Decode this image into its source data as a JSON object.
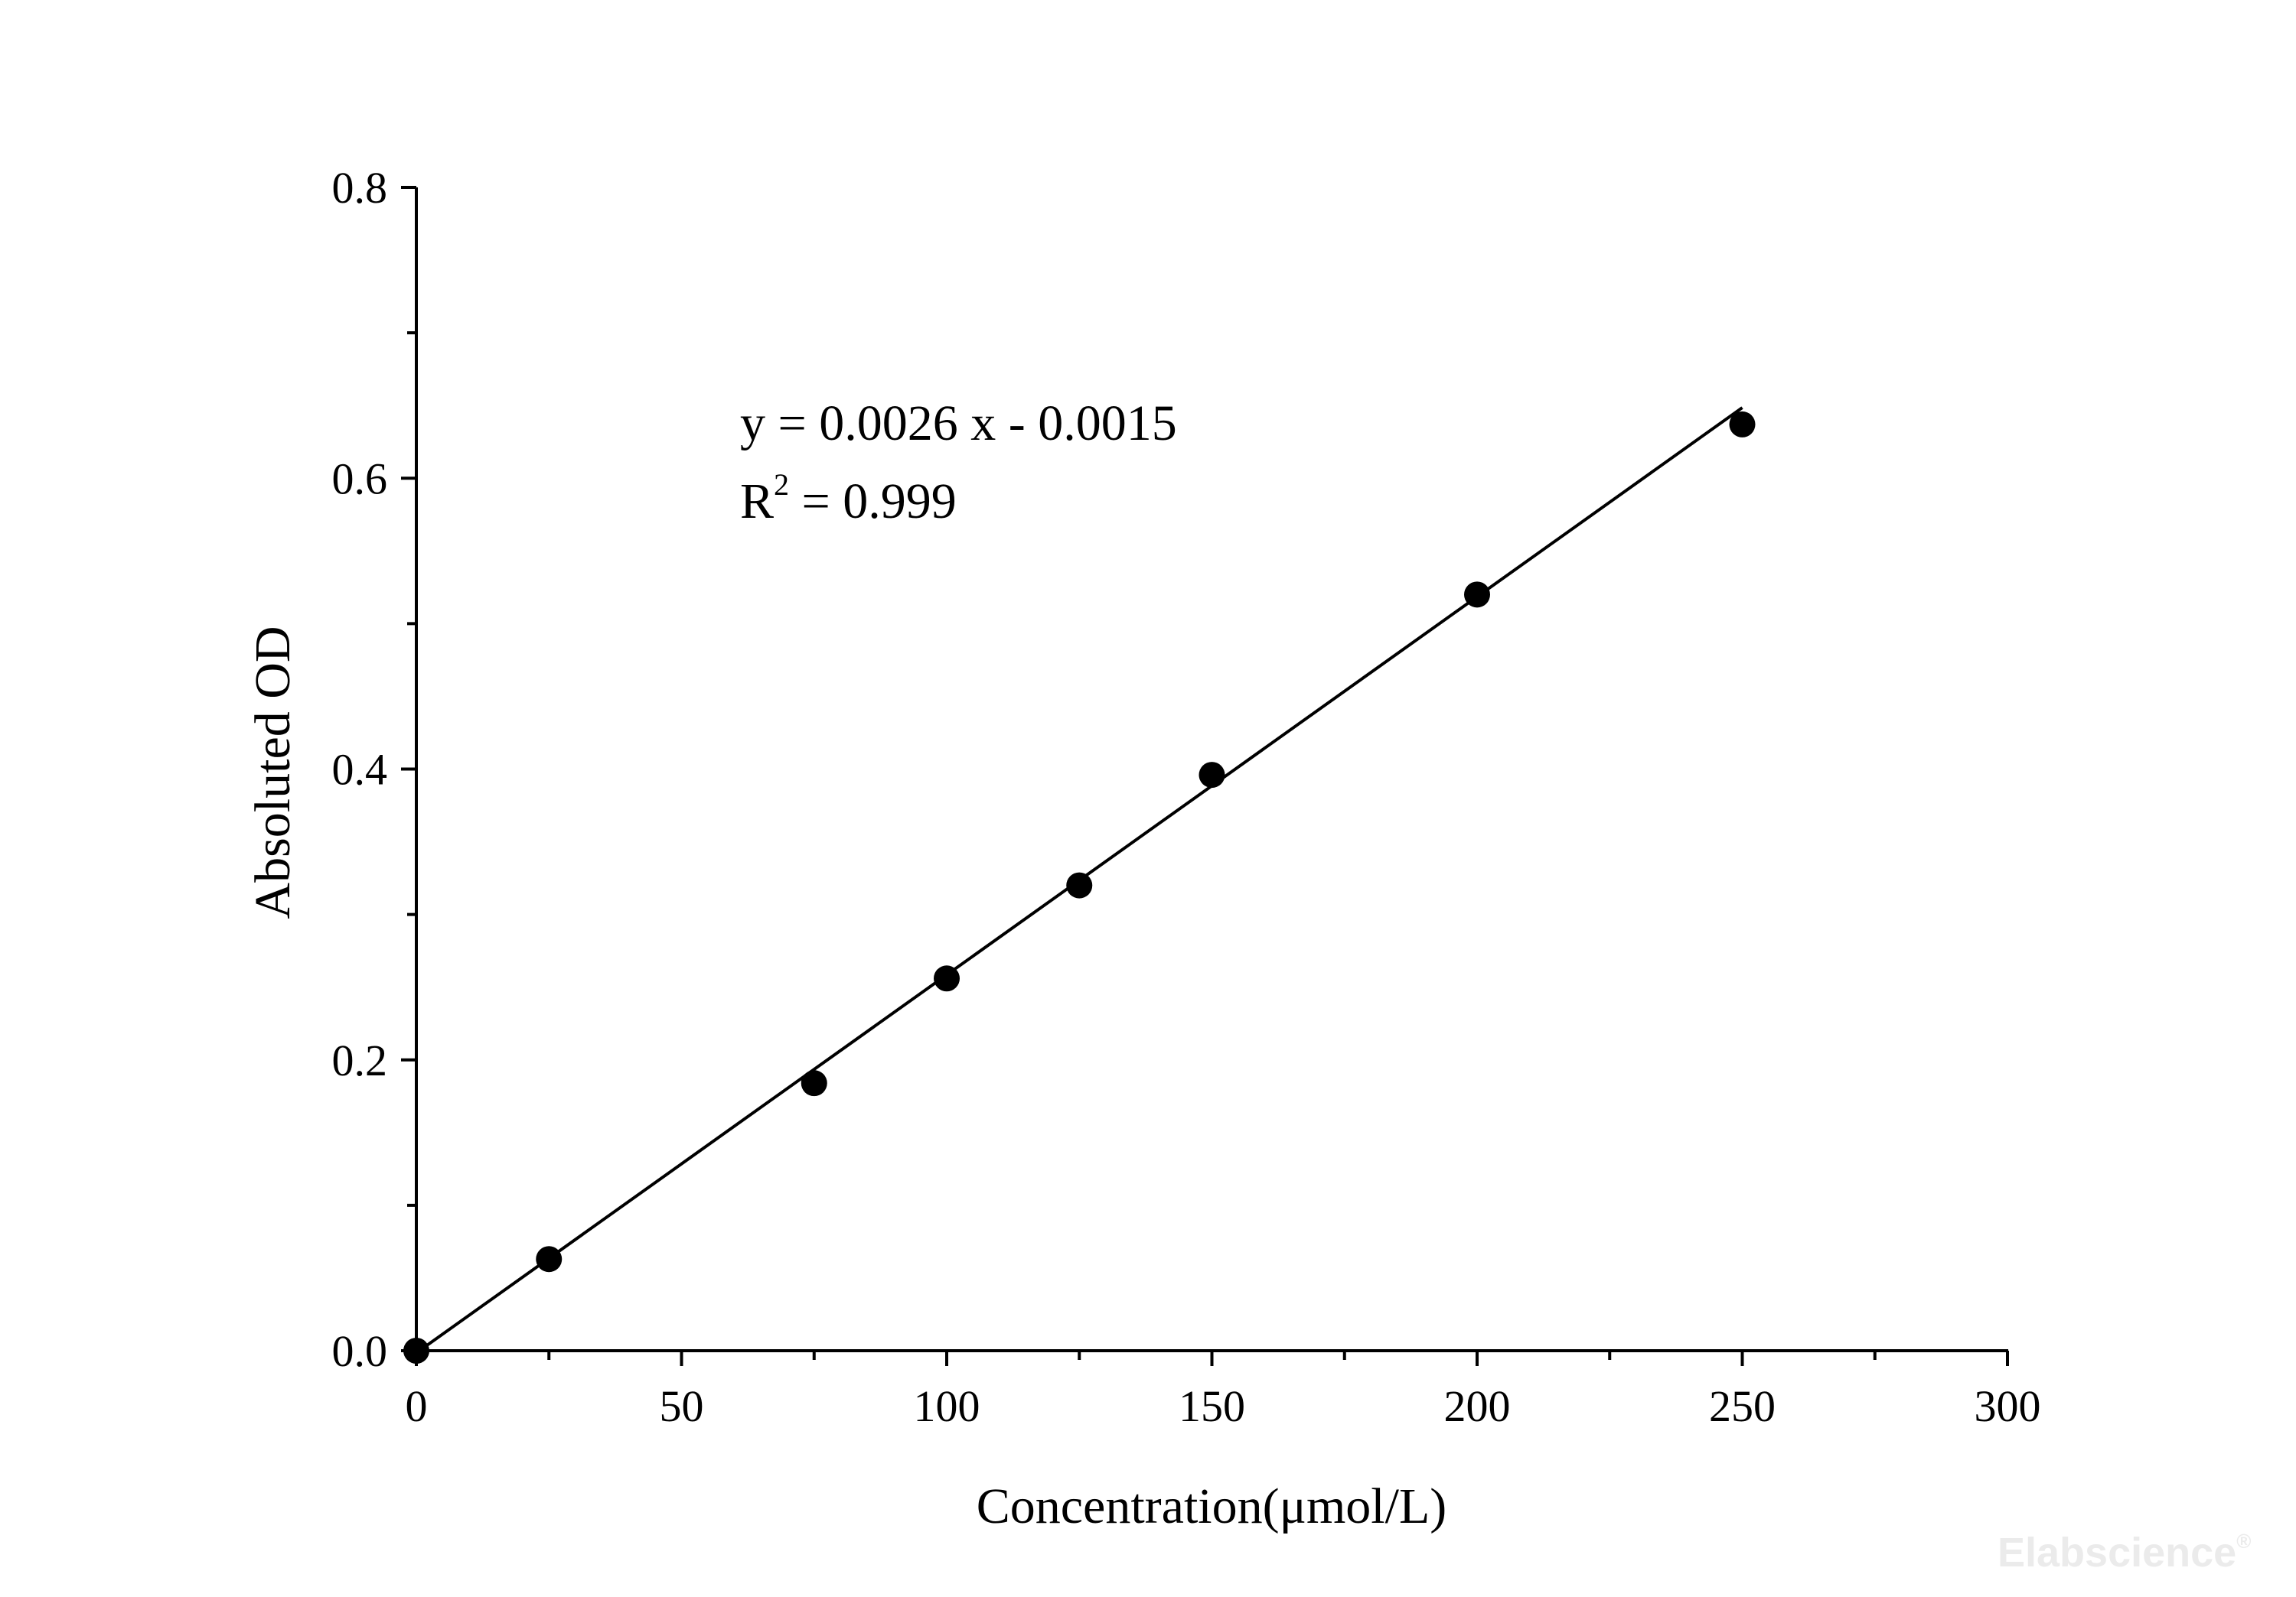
{
  "chart_data": {
    "type": "scatter",
    "xlabel": "Concentration(μmol/L)",
    "ylabel": "Absoluted OD",
    "xlim": [
      0,
      300
    ],
    "ylim": [
      0,
      0.8
    ],
    "xticks": [
      0,
      50,
      100,
      150,
      200,
      250,
      300
    ],
    "xtick_labels": [
      "0",
      "50",
      "100",
      "150",
      "200",
      "250",
      "300"
    ],
    "yticks": [
      0.0,
      0.2,
      0.4,
      0.6,
      0.8
    ],
    "ytick_labels": [
      "0.0",
      "0.2",
      "0.4",
      "0.6",
      "0.8"
    ],
    "grid": false,
    "series": [
      {
        "x": [
          0,
          25,
          75,
          100,
          125,
          150,
          200,
          250
        ],
        "y": [
          0.0,
          0.063,
          0.184,
          0.256,
          0.32,
          0.396,
          0.52,
          0.637
        ]
      }
    ],
    "fit_line": {
      "slope": 0.0026,
      "intercept": -0.0015,
      "x_range": [
        0,
        250
      ]
    },
    "annotations": {
      "equation": "y = 0.0026 x - 0.0015",
      "r2_prefix": "R",
      "r2_sup": "2",
      "r2_value": " = 0.999"
    }
  },
  "watermark": {
    "text": "Elabscience",
    "mark": "®"
  },
  "colors": {
    "axis": "#000000",
    "marker": "#000000",
    "line": "#000000",
    "watermark": "#ebebeb"
  }
}
